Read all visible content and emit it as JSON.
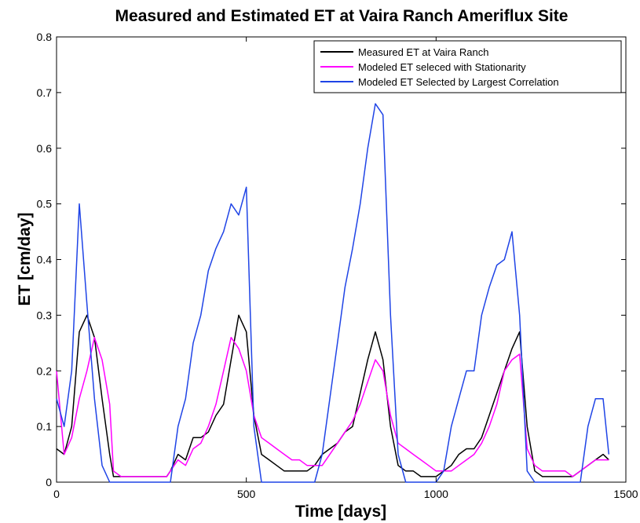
{
  "chart_data": {
    "type": "line",
    "title": "Measured and Estimated ET at Vaira Ranch Ameriflux Site",
    "xlabel": "Time [days]",
    "ylabel": "ET  [cm/day]",
    "xlim": [
      0,
      1500
    ],
    "ylim": [
      0,
      0.8
    ],
    "xticks": [
      0,
      500,
      1000,
      1500
    ],
    "yticks": [
      0,
      0.1,
      0.2,
      0.3,
      0.4,
      0.5,
      0.6,
      0.7,
      0.8
    ],
    "grid": false,
    "legend_position": "top-right",
    "series": [
      {
        "name": "Measured ET at Vaira Ranch",
        "color": "#000000",
        "x": [
          0,
          20,
          40,
          60,
          80,
          100,
          120,
          140,
          150,
          170,
          200,
          230,
          260,
          290,
          300,
          320,
          340,
          360,
          380,
          400,
          420,
          440,
          460,
          480,
          500,
          520,
          540,
          560,
          580,
          600,
          620,
          640,
          660,
          680,
          700,
          720,
          740,
          760,
          780,
          800,
          820,
          840,
          860,
          880,
          900,
          920,
          940,
          960,
          980,
          1000,
          1020,
          1040,
          1060,
          1080,
          1100,
          1120,
          1140,
          1160,
          1180,
          1200,
          1220,
          1240,
          1260,
          1280,
          1300,
          1320,
          1340,
          1360,
          1380,
          1400,
          1420,
          1440,
          1455
        ],
        "y": [
          0.06,
          0.05,
          0.1,
          0.27,
          0.3,
          0.26,
          0.15,
          0.05,
          0.01,
          0.01,
          0.01,
          0.01,
          0.01,
          0.01,
          0.02,
          0.05,
          0.04,
          0.08,
          0.08,
          0.09,
          0.12,
          0.14,
          0.22,
          0.3,
          0.27,
          0.12,
          0.05,
          0.04,
          0.03,
          0.02,
          0.02,
          0.02,
          0.02,
          0.03,
          0.05,
          0.06,
          0.07,
          0.09,
          0.1,
          0.16,
          0.22,
          0.27,
          0.22,
          0.1,
          0.03,
          0.02,
          0.02,
          0.01,
          0.01,
          0.01,
          0.02,
          0.03,
          0.05,
          0.06,
          0.06,
          0.08,
          0.12,
          0.16,
          0.2,
          0.24,
          0.27,
          0.1,
          0.02,
          0.01,
          0.01,
          0.01,
          0.01,
          0.01,
          0.02,
          0.03,
          0.04,
          0.05,
          0.04
        ]
      },
      {
        "name": "Modeled ET seleced with Stationarity",
        "color": "#ff00ff",
        "x": [
          0,
          20,
          40,
          60,
          80,
          100,
          120,
          140,
          150,
          170,
          200,
          230,
          260,
          290,
          300,
          320,
          340,
          360,
          380,
          400,
          420,
          440,
          460,
          480,
          500,
          520,
          540,
          560,
          580,
          600,
          620,
          640,
          660,
          680,
          700,
          720,
          740,
          760,
          780,
          800,
          820,
          840,
          860,
          880,
          900,
          920,
          940,
          960,
          980,
          1000,
          1020,
          1040,
          1060,
          1080,
          1100,
          1120,
          1140,
          1160,
          1180,
          1200,
          1220,
          1240,
          1260,
          1280,
          1300,
          1320,
          1340,
          1360,
          1380,
          1400,
          1420,
          1440,
          1455
        ],
        "y": [
          0.2,
          0.05,
          0.08,
          0.15,
          0.2,
          0.26,
          0.22,
          0.14,
          0.02,
          0.01,
          0.01,
          0.01,
          0.01,
          0.01,
          0.02,
          0.04,
          0.03,
          0.06,
          0.07,
          0.1,
          0.14,
          0.2,
          0.26,
          0.24,
          0.2,
          0.12,
          0.08,
          0.07,
          0.06,
          0.05,
          0.04,
          0.04,
          0.03,
          0.03,
          0.03,
          0.05,
          0.07,
          0.09,
          0.11,
          0.14,
          0.18,
          0.22,
          0.2,
          0.12,
          0.07,
          0.06,
          0.05,
          0.04,
          0.03,
          0.02,
          0.02,
          0.02,
          0.03,
          0.04,
          0.05,
          0.07,
          0.1,
          0.14,
          0.2,
          0.22,
          0.23,
          0.06,
          0.03,
          0.02,
          0.02,
          0.02,
          0.02,
          0.01,
          0.02,
          0.03,
          0.04,
          0.04,
          0.04
        ]
      },
      {
        "name": "Modeled ET Selected by Largest Correlation",
        "color": "#1f44e6",
        "x": [
          0,
          20,
          40,
          60,
          80,
          100,
          120,
          140,
          150,
          170,
          200,
          230,
          260,
          290,
          300,
          320,
          340,
          360,
          380,
          400,
          420,
          440,
          460,
          480,
          500,
          520,
          540,
          560,
          580,
          600,
          620,
          640,
          660,
          680,
          700,
          720,
          740,
          760,
          780,
          800,
          820,
          840,
          860,
          880,
          900,
          920,
          940,
          960,
          980,
          1000,
          1020,
          1040,
          1060,
          1080,
          1100,
          1120,
          1140,
          1160,
          1180,
          1200,
          1220,
          1240,
          1260,
          1280,
          1300,
          1320,
          1340,
          1360,
          1380,
          1400,
          1420,
          1440,
          1455
        ],
        "y": [
          0.15,
          0.1,
          0.2,
          0.5,
          0.32,
          0.15,
          0.03,
          0.0,
          0.0,
          0.0,
          0.0,
          0.0,
          0.0,
          0.0,
          0.0,
          0.1,
          0.15,
          0.25,
          0.3,
          0.38,
          0.42,
          0.45,
          0.5,
          0.48,
          0.53,
          0.1,
          0.0,
          0.0,
          0.0,
          0.0,
          0.0,
          0.0,
          0.0,
          0.0,
          0.05,
          0.15,
          0.25,
          0.35,
          0.42,
          0.5,
          0.6,
          0.68,
          0.66,
          0.3,
          0.05,
          0.0,
          0.0,
          0.0,
          0.0,
          0.0,
          0.02,
          0.1,
          0.15,
          0.2,
          0.2,
          0.3,
          0.35,
          0.39,
          0.4,
          0.45,
          0.3,
          0.02,
          0.0,
          0.0,
          0.0,
          0.0,
          0.0,
          0.0,
          0.0,
          0.1,
          0.15,
          0.15,
          0.05
        ]
      }
    ]
  }
}
